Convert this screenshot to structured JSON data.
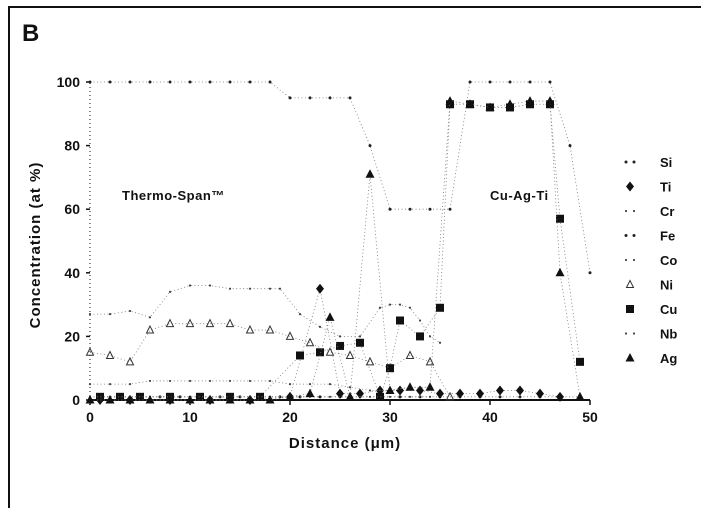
{
  "panel_label": "B",
  "chart_data": {
    "type": "scatter",
    "xlabel": "Distance (μm)",
    "ylabel": "Concentration (at %)",
    "xlim": [
      0,
      50
    ],
    "ylim": [
      0,
      100
    ],
    "xticks": [
      0,
      10,
      20,
      30,
      40,
      50
    ],
    "yticks": [
      0,
      20,
      40,
      60,
      80,
      100
    ],
    "annotations": [
      "Thermo-Span™",
      "Cu-Ag-Ti"
    ],
    "legend_position": "right",
    "series": [
      {
        "name": "Si",
        "marker": "dot",
        "x": [
          1,
          3,
          5,
          7,
          9,
          11,
          13,
          15,
          17,
          19,
          21,
          23,
          25,
          27,
          29,
          31,
          33,
          35,
          37,
          39,
          41,
          43,
          45,
          47,
          49
        ],
        "y": [
          1,
          1,
          1,
          1,
          1,
          1,
          1,
          1,
          1,
          1,
          1,
          1,
          1,
          1,
          1,
          1,
          1,
          1,
          1,
          1,
          1,
          1,
          1,
          1,
          1
        ]
      },
      {
        "name": "Ti",
        "marker": "diamond",
        "x": [
          1,
          4,
          8,
          12,
          16,
          20,
          23,
          25,
          27,
          29,
          31,
          33,
          35,
          37,
          39,
          41,
          43,
          45,
          47
        ],
        "y": [
          0,
          0,
          0,
          0,
          0,
          1,
          35,
          2,
          2,
          3,
          3,
          3,
          2,
          2,
          2,
          3,
          3,
          2,
          1
        ]
      },
      {
        "name": "Cr",
        "marker": "small-dot",
        "x": [
          0,
          2,
          4,
          6,
          8,
          10,
          12,
          14,
          16,
          18,
          19,
          21,
          23,
          25,
          27,
          29,
          30,
          31,
          32,
          33,
          34,
          35
        ],
        "y": [
          27,
          27,
          28,
          26,
          34,
          36,
          36,
          35,
          35,
          35,
          35,
          27,
          23,
          20,
          20,
          29,
          30,
          30,
          29,
          25,
          20,
          18
        ]
      },
      {
        "name": "Fe",
        "marker": "dot",
        "x": [
          0,
          2,
          4,
          6,
          8,
          10,
          12,
          14,
          16,
          18,
          20,
          22,
          24,
          26,
          28,
          30,
          32,
          34,
          36,
          38,
          40,
          42,
          44,
          46,
          48,
          50
        ],
        "y": [
          100,
          100,
          100,
          100,
          100,
          100,
          100,
          100,
          100,
          100,
          95,
          95,
          95,
          95,
          80,
          60,
          60,
          60,
          60,
          100,
          100,
          100,
          100,
          100,
          80,
          40
        ]
      },
      {
        "name": "Co",
        "marker": "small-dot",
        "x": [
          0,
          2,
          4,
          6,
          8,
          10,
          12,
          14,
          16,
          18,
          20,
          22,
          24,
          26,
          28,
          30,
          32,
          34
        ],
        "y": [
          5,
          5,
          5,
          6,
          6,
          6,
          6,
          6,
          6,
          6,
          5,
          5,
          5,
          4,
          3,
          3,
          4,
          4
        ]
      },
      {
        "name": "Ni",
        "marker": "triangle-open",
        "x": [
          0,
          2,
          4,
          6,
          8,
          10,
          12,
          14,
          16,
          18,
          20,
          22,
          24,
          26,
          28,
          30,
          32,
          34,
          36
        ],
        "y": [
          15,
          14,
          12,
          22,
          24,
          24,
          24,
          24,
          22,
          22,
          20,
          18,
          15,
          14,
          12,
          10,
          14,
          12,
          1
        ]
      },
      {
        "name": "Cu",
        "marker": "square",
        "x": [
          1,
          3,
          5,
          8,
          11,
          14,
          17,
          21,
          23,
          25,
          27,
          29,
          30,
          31,
          33,
          35,
          36,
          38,
          40,
          42,
          44,
          46,
          47,
          49
        ],
        "y": [
          1,
          1,
          1,
          1,
          1,
          1,
          1,
          14,
          15,
          17,
          18,
          1,
          10,
          25,
          20,
          29,
          93,
          93,
          92,
          92,
          93,
          93,
          57,
          12
        ]
      },
      {
        "name": "Nb",
        "marker": "small-dot",
        "x": [
          0,
          2,
          4,
          6,
          8,
          10,
          12,
          14,
          16,
          18,
          20,
          22,
          24,
          26,
          28,
          30,
          32,
          34
        ],
        "y": [
          1,
          1,
          1,
          1,
          1,
          1,
          1,
          1,
          1,
          1,
          1,
          1,
          1,
          1,
          1,
          1,
          1,
          1
        ]
      },
      {
        "name": "Ag",
        "marker": "triangle",
        "x": [
          0,
          2,
          4,
          6,
          8,
          10,
          12,
          14,
          16,
          18,
          20,
          22,
          24,
          26,
          28,
          30,
          32,
          34,
          36,
          38,
          40,
          42,
          44,
          46,
          47,
          49
        ],
        "y": [
          0,
          0,
          0,
          0,
          0,
          0,
          0,
          0,
          0,
          0,
          1,
          2,
          26,
          1,
          71,
          3,
          4,
          4,
          94,
          93,
          92,
          93,
          94,
          94,
          40,
          1
        ]
      }
    ]
  }
}
